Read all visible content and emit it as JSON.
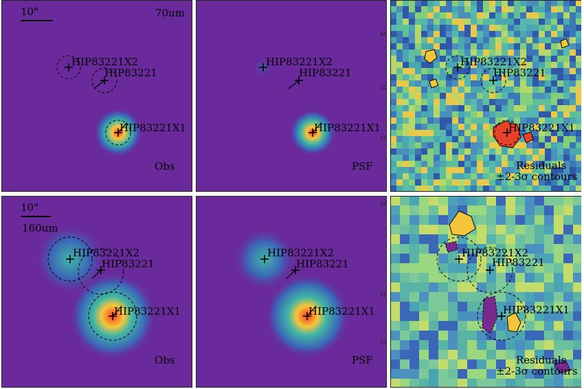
{
  "figure": {
    "scale_bar": "10\"",
    "rows": [
      {
        "band": "70um",
        "panels": [
          {
            "label": "Obs"
          },
          {
            "label": "PSF"
          },
          {
            "label_line1": "Residuals",
            "label_line2": "±2-3σ contours"
          }
        ]
      },
      {
        "band": "160um",
        "panels": [
          {
            "label": "Obs"
          },
          {
            "label": "PSF"
          },
          {
            "label_line1": "Residuals",
            "label_line2": "±2-3σ contours"
          }
        ]
      }
    ],
    "sources": [
      "HIP83221X2",
      "HIP83221",
      "HIP83221X1"
    ],
    "axis_ticks_row1": [
      "40",
      "30",
      "10"
    ],
    "axis_ticks_row2": [
      "20",
      "10",
      "10"
    ]
  },
  "colors": {
    "background": "#6a2a9b",
    "frame": "#222222",
    "residual_base": "#59b7a8",
    "hot_core": "#e8412a",
    "contour": "#000000"
  }
}
